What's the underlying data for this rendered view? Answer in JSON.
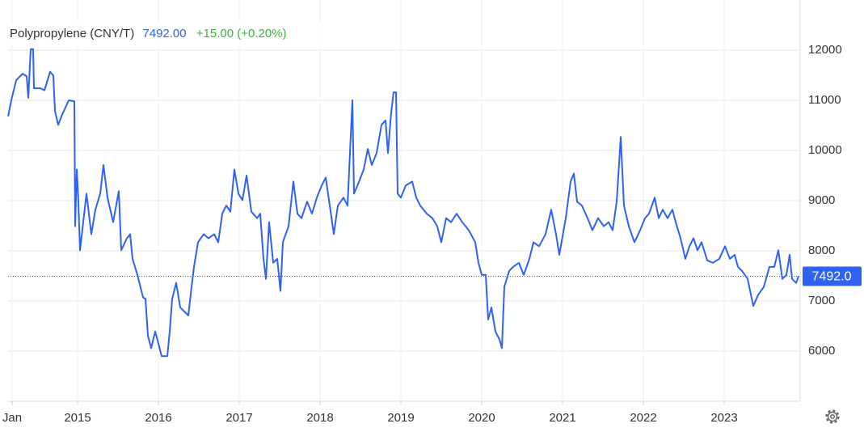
{
  "chart_data": {
    "type": "line",
    "title": "Polypropylene (CNY/T)",
    "price": "7492.00",
    "change": "+15.00 (+0.20%)",
    "last_value": 7492,
    "last_value_label": "7492.0",
    "color": "#2f62f0",
    "grid": true,
    "xlim": [
      2014.14,
      2023.94
    ],
    "xticks": [
      {
        "value": 2014.19,
        "label": "Jan"
      },
      2015,
      2016,
      2017,
      2018,
      2019,
      2020,
      2021,
      2022,
      2023
    ],
    "ylim": [
      5000,
      13000
    ],
    "yticks": [
      6000,
      7000,
      8000,
      9000,
      10000,
      11000,
      12000
    ],
    "x": [
      2014.14,
      2014.18,
      2014.24,
      2014.32,
      2014.37,
      2014.39,
      2014.42,
      2014.45,
      2014.46,
      2014.54,
      2014.59,
      2014.66,
      2014.7,
      2014.72,
      2014.76,
      2014.8,
      2014.89,
      2014.96,
      2014.97,
      2014.99,
      2015.01,
      2015.03,
      2015.07,
      2015.11,
      2015.17,
      2015.22,
      2015.28,
      2015.32,
      2015.37,
      2015.44,
      2015.51,
      2015.54,
      2015.61,
      2015.65,
      2015.68,
      2015.74,
      2015.81,
      2015.84,
      2015.87,
      2015.91,
      2015.96,
      2016.0,
      2016.04,
      2016.11,
      2016.14,
      2016.17,
      2016.22,
      2016.27,
      2016.32,
      2016.37,
      2016.41,
      2016.44,
      2016.49,
      2016.56,
      2016.62,
      2016.69,
      2016.74,
      2016.79,
      2016.84,
      2016.89,
      2016.94,
      2016.99,
      2017.04,
      2017.09,
      2017.15,
      2017.22,
      2017.26,
      2017.3,
      2017.33,
      2017.37,
      2017.42,
      2017.47,
      2017.51,
      2017.54,
      2017.61,
      2017.67,
      2017.72,
      2017.77,
      2017.84,
      2017.9,
      2017.96,
      2018.02,
      2018.07,
      2018.12,
      2018.17,
      2018.22,
      2018.29,
      2018.34,
      2018.4,
      2018.42,
      2018.47,
      2018.54,
      2018.59,
      2018.64,
      2018.7,
      2018.76,
      2018.81,
      2018.84,
      2018.88,
      2018.91,
      2018.94,
      2018.96,
      2019.0,
      2019.06,
      2019.14,
      2019.19,
      2019.24,
      2019.32,
      2019.39,
      2019.45,
      2019.5,
      2019.56,
      2019.62,
      2019.69,
      2019.76,
      2019.84,
      2019.92,
      2019.96,
      2020.0,
      2020.05,
      2020.08,
      2020.12,
      2020.17,
      2020.22,
      2020.25,
      2020.28,
      2020.34,
      2020.39,
      2020.46,
      2020.52,
      2020.59,
      2020.64,
      2020.71,
      2020.79,
      2020.86,
      2020.92,
      2020.96,
      2021.04,
      2021.1,
      2021.14,
      2021.18,
      2021.24,
      2021.31,
      2021.37,
      2021.44,
      2021.51,
      2021.57,
      2021.62,
      2021.67,
      2021.72,
      2021.76,
      2021.82,
      2021.89,
      2021.96,
      2022.02,
      2022.07,
      2022.14,
      2022.19,
      2022.24,
      2022.3,
      2022.36,
      2022.4,
      2022.46,
      2022.52,
      2022.57,
      2022.62,
      2022.67,
      2022.72,
      2022.79,
      2022.86,
      2022.94,
      2023.01,
      2023.07,
      2023.13,
      2023.17,
      2023.22,
      2023.29,
      2023.36,
      2023.42,
      2023.49,
      2023.56,
      2023.62,
      2023.67,
      2023.72,
      2023.77,
      2023.81,
      2023.84,
      2023.89,
      2023.92
    ],
    "values": [
      10680,
      11000,
      11400,
      11530,
      11480,
      11050,
      12020,
      12020,
      11240,
      11240,
      11200,
      11570,
      11490,
      10790,
      10510,
      10680,
      11000,
      10980,
      8490,
      9620,
      8980,
      8010,
      8570,
      9140,
      8330,
      8820,
      9140,
      9710,
      9060,
      8570,
      9190,
      8010,
      8250,
      8330,
      7840,
      7520,
      7070,
      7040,
      6310,
      6060,
      6390,
      6150,
      5900,
      5900,
      6390,
      7040,
      7360,
      6870,
      6790,
      6710,
      7280,
      7680,
      8170,
      8330,
      8250,
      8330,
      8170,
      8740,
      8900,
      8780,
      9620,
      9140,
      9010,
      9500,
      8780,
      8650,
      8740,
      7840,
      7440,
      8570,
      7760,
      7840,
      7200,
      8170,
      8490,
      9380,
      8740,
      8650,
      8980,
      8740,
      9060,
      9300,
      9460,
      8900,
      8330,
      8900,
      9060,
      8900,
      11000,
      9140,
      9330,
      9620,
      10030,
      9710,
      9950,
      10510,
      10600,
      9950,
      10760,
      11160,
      11160,
      9140,
      9060,
      9300,
      9380,
      9060,
      8900,
      8740,
      8650,
      8490,
      8170,
      8650,
      8570,
      8740,
      8570,
      8410,
      8170,
      7760,
      7520,
      7520,
      6630,
      6870,
      6390,
      6230,
      6060,
      7280,
      7600,
      7680,
      7760,
      7520,
      7840,
      8170,
      8090,
      8330,
      8820,
      8330,
      7920,
      8650,
      9380,
      9540,
      8980,
      8900,
      8650,
      8410,
      8650,
      8490,
      8570,
      8410,
      8980,
      10270,
      8900,
      8490,
      8170,
      8410,
      8650,
      8740,
      9060,
      8650,
      8820,
      8650,
      8820,
      8570,
      8250,
      7840,
      8090,
      8250,
      8010,
      8170,
      7810,
      7760,
      7840,
      8090,
      7840,
      7920,
      7680,
      7600,
      7440,
      6900,
      7120,
      7280,
      7680,
      7680,
      8010,
      7440,
      7520,
      7920,
      7440,
      7360,
      7492
    ]
  }
}
